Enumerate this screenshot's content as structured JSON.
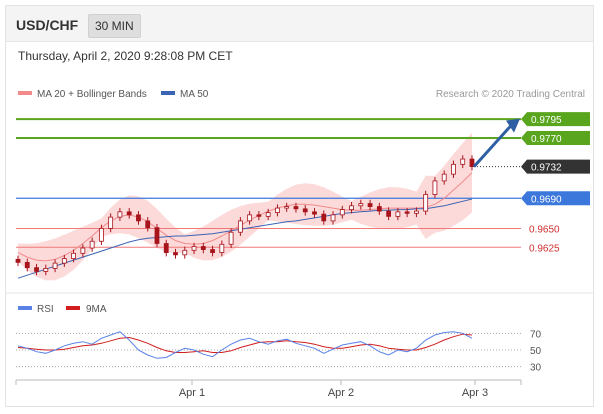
{
  "header": {
    "symbol": "USD/CHF",
    "timeframe": "30 MIN"
  },
  "timestamp": "Thursday, April 2, 2020 9:28:08 PM CET",
  "legend": {
    "ma20": "MA 20 + Bollinger Bands",
    "ma50": "MA 50",
    "credit": "Research © 2020 Trading Central",
    "rsi": "RSI",
    "ma9": "9MA"
  },
  "colors": {
    "candle": "#a8141c",
    "band_fill": "#fbd3d3",
    "ma20": "#f28a8a",
    "ma50": "#3c64b4",
    "resistance": "#5aa51e",
    "support_blue": "#3c78dc",
    "support_red": "#f07878",
    "current": "#333333",
    "arrow": "#2e5ea3",
    "rsi": "#5a82e6",
    "rsi_ma": "#d21e1e"
  },
  "chart_data": [
    {
      "type": "candlestick",
      "ylim": [
        0.9575,
        0.9815
      ],
      "x_ticks": [
        "Apr 1",
        "Apr 2",
        "Apr 3"
      ],
      "levels": [
        {
          "value": 0.9795,
          "label": "0.9795",
          "kind": "resistance"
        },
        {
          "value": 0.977,
          "label": "0.9770",
          "kind": "resistance"
        },
        {
          "value": 0.9732,
          "label": "0.9732",
          "kind": "current"
        },
        {
          "value": 0.969,
          "label": "0.9690",
          "kind": "pivot"
        },
        {
          "value": 0.965,
          "label": "0.9650",
          "kind": "support"
        },
        {
          "value": 0.9625,
          "label": "0.9625",
          "kind": "support"
        }
      ],
      "series": [
        {
          "name": "MA 20 + Bollinger Bands",
          "values": [
            0.9618,
            0.9612,
            0.9608,
            0.9607,
            0.9609,
            0.9614,
            0.9621,
            0.963,
            0.964,
            0.9651,
            0.966,
            0.9666,
            0.9668,
            0.9665,
            0.9659,
            0.965,
            0.9641,
            0.9634,
            0.963,
            0.9629,
            0.963,
            0.9634,
            0.964,
            0.9647,
            0.9654,
            0.9661,
            0.9667,
            0.9673,
            0.9677,
            0.968,
            0.9682,
            0.9682,
            0.9681,
            0.9679,
            0.9677,
            0.9675,
            0.9674,
            0.9674,
            0.9675,
            0.9676,
            0.9677,
            0.9677,
            0.9677,
            0.9677,
            0.9678,
            0.9682,
            0.969,
            0.9701,
            0.9712,
            0.9724
          ]
        },
        {
          "name": "MA 50",
          "values": [
            0.9584,
            0.9588,
            0.9592,
            0.9596,
            0.96,
            0.9604,
            0.9608,
            0.9612,
            0.9616,
            0.962,
            0.9624,
            0.9628,
            0.9632,
            0.9635,
            0.9637,
            0.9638,
            0.9639,
            0.964,
            0.964,
            0.9641,
            0.9642,
            0.9643,
            0.9645,
            0.9647,
            0.9649,
            0.9651,
            0.9653,
            0.9655,
            0.9657,
            0.9659,
            0.966,
            0.9662,
            0.9664,
            0.9666,
            0.9668,
            0.967,
            0.9671,
            0.9672,
            0.9673,
            0.9674,
            0.9674,
            0.9675,
            0.9675,
            0.9676,
            0.9676,
            0.9678,
            0.968,
            0.9683,
            0.9686,
            0.9689
          ]
        }
      ],
      "close": [
        0.9605,
        0.9598,
        0.9593,
        0.9597,
        0.9604,
        0.961,
        0.9617,
        0.9624,
        0.9633,
        0.965,
        0.9665,
        0.9672,
        0.9668,
        0.966,
        0.9651,
        0.963,
        0.9618,
        0.9615,
        0.9621,
        0.9626,
        0.9622,
        0.9618,
        0.9629,
        0.9645,
        0.966,
        0.9668,
        0.9666,
        0.9671,
        0.9677,
        0.9679,
        0.9676,
        0.9672,
        0.9669,
        0.966,
        0.9668,
        0.9675,
        0.968,
        0.9683,
        0.9679,
        0.9673,
        0.9666,
        0.9672,
        0.967,
        0.9673,
        0.9695,
        0.9713,
        0.9722,
        0.9735,
        0.9742,
        0.9732
      ]
    },
    {
      "type": "line",
      "ylim": [
        20,
        80
      ],
      "y_ticks": [
        70,
        50,
        30
      ],
      "series": [
        {
          "name": "RSI",
          "values": [
            55,
            52,
            48,
            46,
            50,
            55,
            58,
            60,
            57,
            64,
            68,
            72,
            62,
            50,
            44,
            40,
            41,
            47,
            52,
            50,
            45,
            42,
            50,
            57,
            62,
            64,
            60,
            57,
            61,
            63,
            58,
            55,
            52,
            46,
            51,
            56,
            58,
            60,
            55,
            48,
            44,
            50,
            48,
            52,
            62,
            68,
            71,
            72,
            70,
            64
          ]
        },
        {
          "name": "9MA",
          "values": [
            53,
            52,
            51,
            50,
            50,
            51,
            53,
            55,
            56,
            58,
            61,
            64,
            65,
            62,
            58,
            53,
            49,
            47,
            47,
            48,
            49,
            47,
            47,
            49,
            53,
            56,
            59,
            60,
            60,
            61,
            60,
            59,
            57,
            54,
            52,
            52,
            54,
            56,
            57,
            55,
            52,
            51,
            50,
            50,
            53,
            57,
            62,
            66,
            69,
            68
          ]
        }
      ]
    }
  ]
}
